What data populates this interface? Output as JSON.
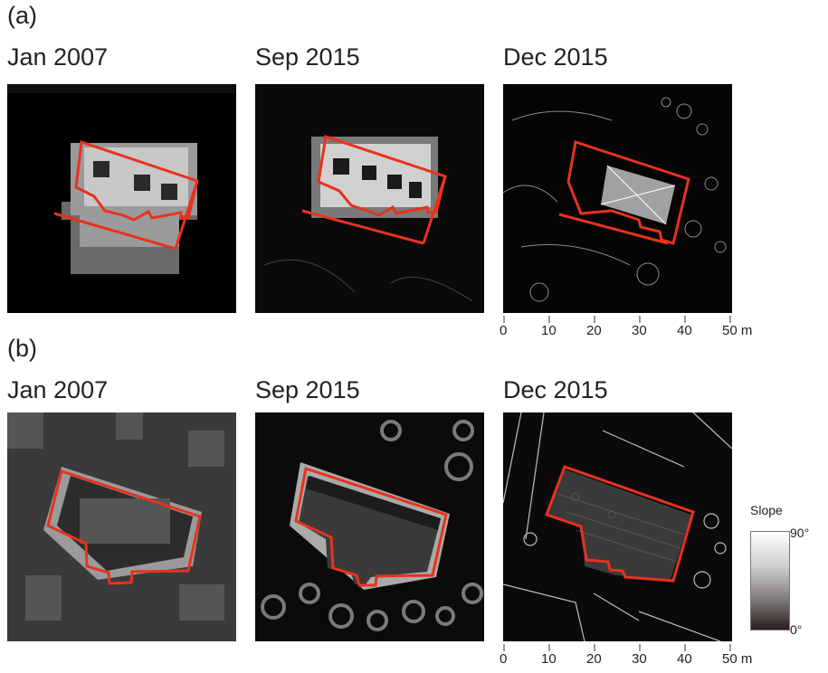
{
  "panels": [
    {
      "label": "(a)",
      "titles": [
        "Jan 2007",
        "Sep 2015",
        "Dec 2015"
      ],
      "scale": {
        "ticks": [
          "0",
          "10",
          "20",
          "30",
          "40",
          "50 m"
        ]
      }
    },
    {
      "label": "(b)",
      "titles": [
        "Jan 2007",
        "Sep 2015",
        "Dec 2015"
      ],
      "scale": {
        "ticks": [
          "0",
          "10",
          "20",
          "30",
          "40",
          "50 m"
        ]
      }
    }
  ],
  "legend": {
    "title": "Slope",
    "max": "90°",
    "min": "0°"
  },
  "colors": {
    "outline": "#e8321e",
    "background": "#000000"
  }
}
